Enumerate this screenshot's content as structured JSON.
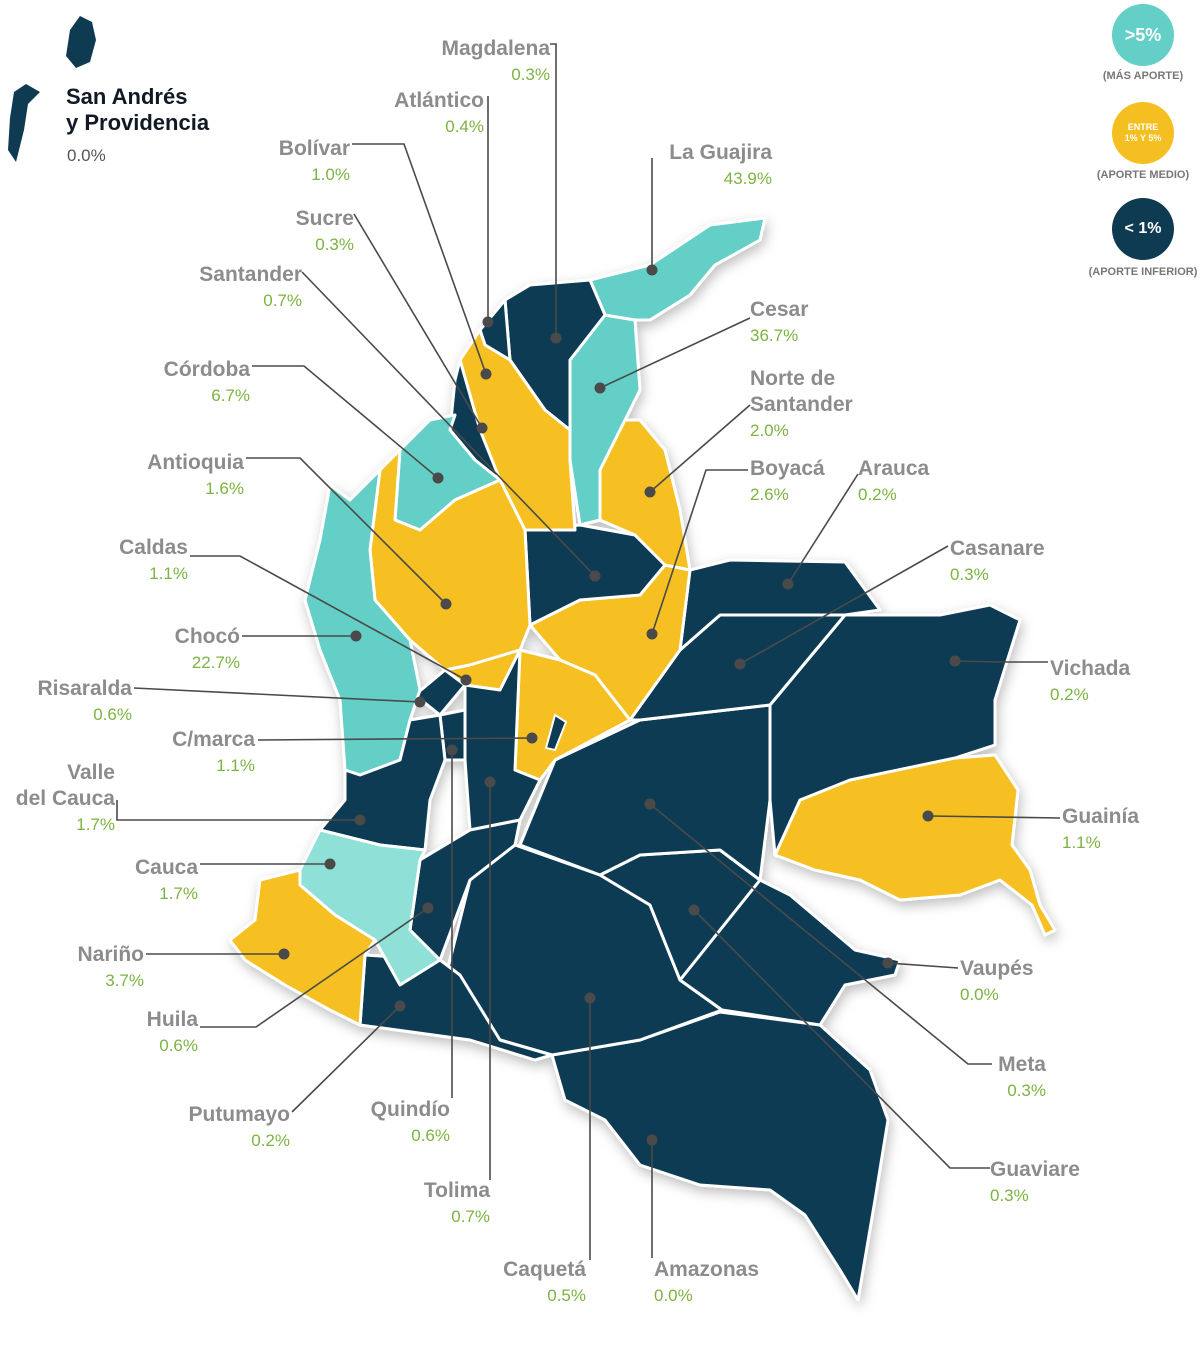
{
  "colors": {
    "high": "#63cfc6",
    "high_light": "#8fe0d7",
    "medium": "#f6bf21",
    "low": "#0f3b52"
  },
  "islands": {
    "name_line1": "San Andrés",
    "name_line2": "y Providencia",
    "pct": "0.0%"
  },
  "legend": {
    "high": {
      "text": ">5%",
      "caption": "(MÁS APORTE)"
    },
    "medium": {
      "text_line1": "ENTRE",
      "text_line2": "1% Y 5%",
      "caption": "(APORTE MEDIO)"
    },
    "low": {
      "text": "< 1%",
      "caption": "(APORTE INFERIOR)"
    }
  },
  "departments": [
    {
      "id": "magdalena",
      "name": "Magdalena",
      "pct": "0.3%",
      "level": "low"
    },
    {
      "id": "atlantico",
      "name": "Atlántico",
      "pct": "0.4%",
      "level": "low"
    },
    {
      "id": "bolivar",
      "name": "Bolívar",
      "pct": "1.0%",
      "level": "medium"
    },
    {
      "id": "la-guajira",
      "name": "La Guajira",
      "pct": "43.9%",
      "level": "high"
    },
    {
      "id": "sucre",
      "name": "Sucre",
      "pct": "0.3%",
      "level": "low"
    },
    {
      "id": "santander",
      "name": "Santander",
      "pct": "0.7%",
      "level": "low"
    },
    {
      "id": "cesar",
      "name": "Cesar",
      "pct": "36.7%",
      "level": "high"
    },
    {
      "id": "cordoba",
      "name": "Córdoba",
      "pct": "6.7%",
      "level": "high"
    },
    {
      "id": "norte-santander",
      "name": "Norte de Santander",
      "name_line1": "Norte de",
      "name_line2": "Santander",
      "pct": "2.0%",
      "level": "medium"
    },
    {
      "id": "antioquia",
      "name": "Antioquia",
      "pct": "1.6%",
      "level": "medium"
    },
    {
      "id": "boyaca",
      "name": "Boyacá",
      "pct": "2.6%",
      "level": "medium"
    },
    {
      "id": "arauca",
      "name": "Arauca",
      "pct": "0.2%",
      "level": "low"
    },
    {
      "id": "caldas",
      "name": "Caldas",
      "pct": "1.1%",
      "level": "medium"
    },
    {
      "id": "casanare",
      "name": "Casanare",
      "pct": "0.3%",
      "level": "low"
    },
    {
      "id": "choco",
      "name": "Chocó",
      "pct": "22.7%",
      "level": "high"
    },
    {
      "id": "vichada",
      "name": "Vichada",
      "pct": "0.2%",
      "level": "low"
    },
    {
      "id": "risaralda",
      "name": "Risaralda",
      "pct": "0.6%",
      "level": "low"
    },
    {
      "id": "cmarca",
      "name": "C/marca",
      "pct": "1.1%",
      "level": "medium"
    },
    {
      "id": "valle",
      "name": "Valle del Cauca",
      "name_line1": "Valle",
      "name_line2": "del Cauca",
      "pct": "1.7%",
      "level": "medium"
    },
    {
      "id": "guainia",
      "name": "Guainía",
      "pct": "1.1%",
      "level": "medium"
    },
    {
      "id": "cauca",
      "name": "Cauca",
      "pct": "1.7%",
      "level": "medium"
    },
    {
      "id": "narino",
      "name": "Nariño",
      "pct": "3.7%",
      "level": "medium"
    },
    {
      "id": "vaupes",
      "name": "Vaupés",
      "pct": "0.0%",
      "level": "low"
    },
    {
      "id": "huila",
      "name": "Huila",
      "pct": "0.6%",
      "level": "low"
    },
    {
      "id": "meta",
      "name": "Meta",
      "pct": "0.3%",
      "level": "low"
    },
    {
      "id": "putumayo",
      "name": "Putumayo",
      "pct": "0.2%",
      "level": "low"
    },
    {
      "id": "quindio",
      "name": "Quindío",
      "pct": "0.6%",
      "level": "low"
    },
    {
      "id": "guaviare",
      "name": "Guaviare",
      "pct": "0.3%",
      "level": "low"
    },
    {
      "id": "tolima",
      "name": "Tolima",
      "pct": "0.7%",
      "level": "low"
    },
    {
      "id": "caqueta",
      "name": "Caquetá",
      "pct": "0.5%",
      "level": "low"
    },
    {
      "id": "amazonas",
      "name": "Amazonas",
      "pct": "0.0%",
      "level": "low"
    }
  ]
}
